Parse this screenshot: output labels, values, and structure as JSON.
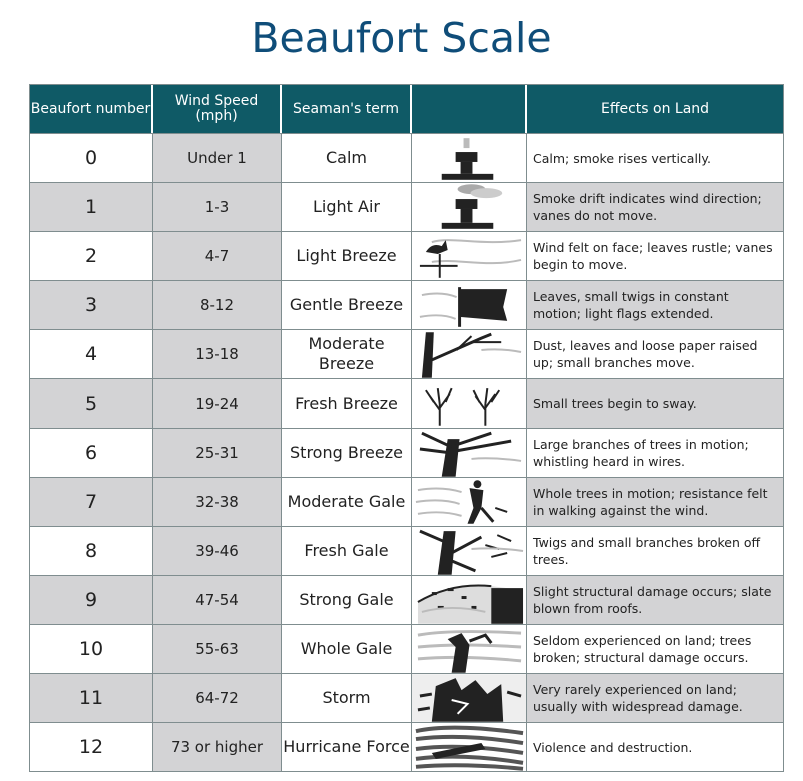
{
  "title": "Beaufort Scale",
  "headers": {
    "number": "Beaufort number",
    "speed": "Wind Speed (mph)",
    "term": "Seaman's term",
    "image": "",
    "effects": "Effects on Land"
  },
  "rows": [
    {
      "number": "0",
      "speed": "Under 1",
      "term": "Calm",
      "effects": "Calm; smoke rises vertically.",
      "icon": "smokestack-calm-icon"
    },
    {
      "number": "1",
      "speed": "1-3",
      "term": "Light Air",
      "effects": "Smoke drift indicates wind direction; vanes do not move.",
      "icon": "smokestack-drift-icon"
    },
    {
      "number": "2",
      "speed": "4-7",
      "term": "Light Breeze",
      "effects": "Wind felt on face; leaves rustle; vanes begin to move.",
      "icon": "weathervane-icon"
    },
    {
      "number": "3",
      "speed": "8-12",
      "term": "Gentle Breeze",
      "effects": "Leaves, small twigs in constant motion; light flags extended.",
      "icon": "flag-icon"
    },
    {
      "number": "4",
      "speed": "13-18",
      "term": "Moderate Breeze",
      "effects": "Dust, leaves and loose paper raised up; small branches move.",
      "icon": "branch-icon"
    },
    {
      "number": "5",
      "speed": "19-24",
      "term": "Fresh Breeze",
      "effects": "Small trees begin to sway.",
      "icon": "small-trees-icon"
    },
    {
      "number": "6",
      "speed": "25-31",
      "term": "Strong Breeze",
      "effects": "Large branches of trees in motion; whistling heard in wires.",
      "icon": "tree-branches-icon"
    },
    {
      "number": "7",
      "speed": "32-38",
      "term": "Moderate Gale",
      "effects": "Whole trees in motion; resistance felt in walking against the wind.",
      "icon": "person-walking-wind-icon"
    },
    {
      "number": "8",
      "speed": "39-46",
      "term": "Fresh Gale",
      "effects": "Twigs and small branches broken off trees.",
      "icon": "broken-twigs-icon"
    },
    {
      "number": "9",
      "speed": "47-54",
      "term": "Strong Gale",
      "effects": "Slight structural damage occurs; slate blown from roofs.",
      "icon": "roof-damage-icon"
    },
    {
      "number": "10",
      "speed": "55-63",
      "term": "Whole Gale",
      "effects": "Seldom experienced on land; trees broken; structural damage occurs.",
      "icon": "broken-tree-icon"
    },
    {
      "number": "11",
      "speed": "64-72",
      "term": "Storm",
      "effects": "Very rarely experienced on land; usually with widespread damage.",
      "icon": "storm-damage-icon"
    },
    {
      "number": "12",
      "speed": "73 or higher",
      "term": "Hurricane Force",
      "effects": "Violence and destruction.",
      "icon": "hurricane-icon"
    }
  ]
}
